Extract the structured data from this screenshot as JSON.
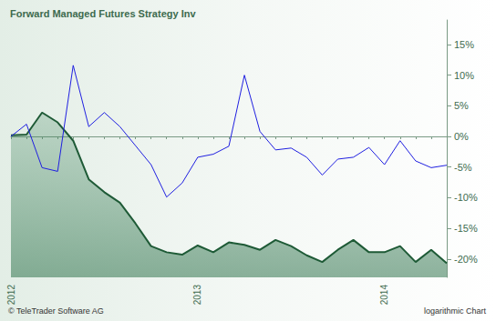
{
  "chart_data": {
    "type": "line",
    "title": "Forward Managed Futures Strategy Inv",
    "source": "© TeleTrader Software AG",
    "annotation": "logarithmic Chart",
    "categories": [
      "2012",
      null,
      null,
      null,
      null,
      null,
      null,
      null,
      null,
      null,
      null,
      null,
      "2013",
      null,
      null,
      null,
      null,
      null,
      null,
      null,
      null,
      null,
      null,
      null,
      "2014",
      null,
      null,
      null,
      null
    ],
    "series": [
      {
        "type": "line",
        "color": "#1f1fe0",
        "values": [
          0,
          2.0,
          -5.1,
          -5.7,
          11.6,
          1.6,
          3.9,
          1.6,
          -1.5,
          -4.6,
          -9.9,
          -7.6,
          -3.4,
          -2.9,
          -1.6,
          10,
          0.8,
          -2.2,
          -1.9,
          -3.4,
          -6.3,
          -3.7,
          -3.4,
          -1.8,
          -4.6,
          -0.7,
          -4.0,
          -5.1,
          -4.7
        ]
      },
      {
        "type": "area",
        "color": "#1e5a36",
        "values": [
          0.2,
          0.3,
          3.9,
          2.3,
          -0.7,
          -7.0,
          -9.1,
          -10.8,
          -14.2,
          -17.9,
          -18.9,
          -19.3,
          -17.8,
          -18.9,
          -17.3,
          -17.7,
          -18.5,
          -16.9,
          -17.9,
          -19.4,
          -20.5,
          -18.5,
          -16.9,
          -18.9,
          -18.9,
          -17.9,
          -20.5,
          -18.5,
          -20.7
        ]
      }
    ],
    "ylim": [
      -23,
      19
    ],
    "yticks": [
      {
        "value": -20,
        "label": "-20%"
      },
      {
        "value": -15,
        "label": "-15%"
      },
      {
        "value": -10,
        "label": "-10%"
      },
      {
        "value": -5,
        "label": "-5%"
      },
      {
        "value": 0,
        "label": "0%"
      },
      {
        "value": 5,
        "label": "5%"
      },
      {
        "value": 10,
        "label": "10%"
      },
      {
        "value": 15,
        "label": "15%"
      }
    ],
    "grid": false
  }
}
